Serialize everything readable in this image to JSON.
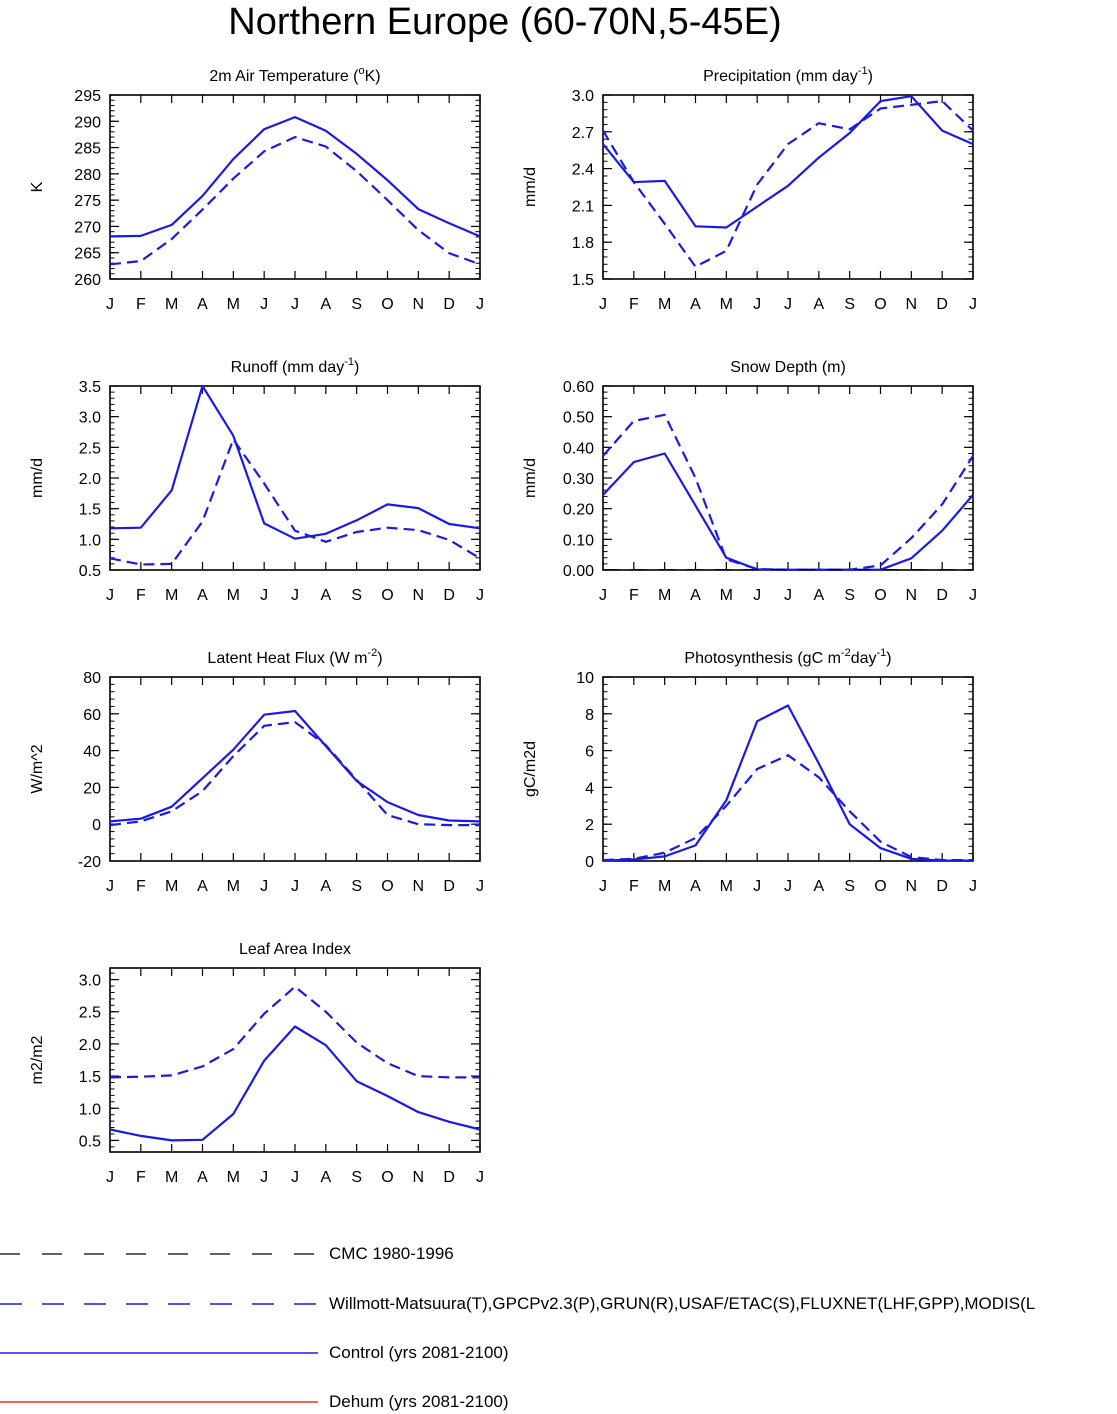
{
  "title": "Northern Europe (60-70N,5-45E)",
  "months": [
    "J",
    "F",
    "M",
    "A",
    "M",
    "J",
    "J",
    "A",
    "S",
    "O",
    "N",
    "D",
    "J"
  ],
  "colors": {
    "obs": "#1a1ae6",
    "control": "#1a1ae6",
    "cmc": "#000000",
    "dehum": "#e6331a"
  },
  "chart_data": [
    {
      "type": "line",
      "title": "2m Air Temperature (",
      "title_sup": "o",
      "title_suffix": "K)",
      "ylabel": "K",
      "ylim": [
        260,
        295
      ],
      "yticks": [
        "260",
        "265",
        "270",
        "275",
        "280",
        "285",
        "290",
        "295"
      ],
      "ytick_values": [
        260,
        265,
        270,
        275,
        280,
        285,
        290,
        295
      ],
      "series": [
        {
          "values": [
            268.1,
            268.2,
            270.3,
            275.8,
            282.8,
            288.5,
            290.8,
            288.2,
            283.8,
            278.8,
            273.3,
            270.6,
            268.1
          ],
          "style": "solid"
        },
        {
          "values": [
            262.8,
            263.4,
            267.6,
            273.2,
            279.1,
            284.3,
            287.0,
            285.2,
            280.5,
            275.0,
            269.3,
            264.9,
            262.8
          ],
          "style": "dashed"
        }
      ]
    },
    {
      "type": "line",
      "title": "Precipitation (mm day",
      "title_sup": "-1",
      "title_suffix": ")",
      "ylabel": "mm/d",
      "ylim": [
        1.5,
        3.0
      ],
      "yticks": [
        "1.5",
        "1.8",
        "2.1",
        "2.4",
        "2.7",
        "3.0"
      ],
      "ytick_values": [
        1.5,
        1.8,
        2.1,
        2.4,
        2.7,
        3.0
      ],
      "series": [
        {
          "values": [
            2.6,
            2.29,
            2.3,
            1.93,
            1.92,
            2.09,
            2.26,
            2.49,
            2.69,
            2.95,
            2.99,
            2.71,
            2.6
          ],
          "style": "solid"
        },
        {
          "values": [
            2.71,
            2.29,
            1.95,
            1.6,
            1.73,
            2.27,
            2.6,
            2.77,
            2.72,
            2.89,
            2.92,
            2.95,
            2.71
          ],
          "style": "dashed"
        }
      ]
    },
    {
      "type": "line",
      "title": "Runoff (mm day",
      "title_sup": "-1",
      "title_suffix": ")",
      "ylabel": "mm/d",
      "ylim": [
        0.5,
        3.5
      ],
      "yticks": [
        "0.5",
        "1.0",
        "1.5",
        "2.0",
        "2.5",
        "3.0",
        "3.5"
      ],
      "ytick_values": [
        0.5,
        1.0,
        1.5,
        2.0,
        2.5,
        3.0,
        3.5
      ],
      "series": [
        {
          "values": [
            1.18,
            1.19,
            1.8,
            3.5,
            2.69,
            1.26,
            1.01,
            1.09,
            1.31,
            1.57,
            1.51,
            1.25,
            1.18
          ],
          "style": "solid"
        },
        {
          "values": [
            0.69,
            0.59,
            0.6,
            1.29,
            2.63,
            1.91,
            1.14,
            0.96,
            1.12,
            1.19,
            1.15,
            0.99,
            0.69
          ],
          "style": "dashed"
        }
      ]
    },
    {
      "type": "line",
      "title": "Snow Depth (m)",
      "title_sup": "",
      "title_suffix": "",
      "ylabel": "mm/d",
      "ylim": [
        0.0,
        0.6
      ],
      "yticks": [
        "0.00",
        "0.10",
        "0.20",
        "0.30",
        "0.40",
        "0.50",
        "0.60"
      ],
      "ytick_values": [
        0.0,
        0.1,
        0.2,
        0.3,
        0.4,
        0.5,
        0.6
      ],
      "series": [
        {
          "values": [
            0.245,
            0.352,
            0.38,
            0.21,
            0.04,
            0.002,
            0.001,
            0.001,
            0.001,
            0.001,
            0.038,
            0.128,
            0.245
          ],
          "style": "solid"
        },
        {
          "values": [
            0.372,
            0.486,
            0.506,
            0.3,
            0.035,
            0.003,
            0.001,
            0.001,
            0.001,
            0.015,
            0.104,
            0.214,
            0.372
          ],
          "style": "dashed"
        },
        {
          "values": [
            0.001,
            0.001,
            0.001,
            0.001,
            0.001,
            0.001,
            0.001,
            0.001,
            0.001,
            0.001,
            0.001,
            0.001,
            0.001
          ],
          "style": "cmc"
        }
      ]
    },
    {
      "type": "line",
      "title": "Latent Heat Flux (W m",
      "title_sup": "-2",
      "title_suffix": ")",
      "ylabel": "W/m^2",
      "ylim": [
        -20,
        80
      ],
      "yticks": [
        "-20",
        "0",
        "20",
        "40",
        "60",
        "80"
      ],
      "ytick_values": [
        -20,
        0,
        20,
        40,
        60,
        80
      ],
      "series": [
        {
          "values": [
            1.5,
            3.0,
            9.5,
            25.0,
            40.5,
            59.5,
            61.5,
            42.5,
            23.5,
            12.0,
            5.0,
            2.0,
            1.5
          ],
          "style": "solid"
        },
        {
          "values": [
            -0.5,
            1.5,
            7.0,
            18.0,
            37.0,
            53.5,
            55.5,
            43.0,
            24.0,
            5.0,
            0.0,
            -0.5,
            -0.5
          ],
          "style": "dashed"
        }
      ]
    },
    {
      "type": "line",
      "title": "Photosynthesis (gC m",
      "title_sup": "-2",
      "title_suffix": "day",
      "title_sup2": "-1",
      "title_suffix2": ")",
      "ylabel": "gC/m2d",
      "ylim": [
        0,
        10
      ],
      "yticks": [
        "0",
        "2",
        "4",
        "6",
        "8",
        "10"
      ],
      "ytick_values": [
        0,
        2,
        4,
        6,
        8,
        10
      ],
      "series": [
        {
          "values": [
            0.02,
            0.08,
            0.25,
            0.85,
            3.3,
            7.6,
            8.45,
            5.3,
            2.0,
            0.7,
            0.12,
            0.02,
            0.02
          ],
          "style": "solid"
        },
        {
          "values": [
            0.05,
            0.12,
            0.45,
            1.25,
            3.0,
            5.0,
            5.75,
            4.55,
            2.7,
            1.05,
            0.22,
            0.05,
            0.05
          ],
          "style": "dashed"
        }
      ]
    },
    {
      "type": "line",
      "title": "Leaf Area Index",
      "title_sup": "",
      "title_suffix": "",
      "ylabel": "m2/m2",
      "ylim": [
        0.32,
        3.18
      ],
      "yticks": [
        "0.5",
        "1.0",
        "1.5",
        "2.0",
        "2.5",
        "3.0"
      ],
      "ytick_values": [
        0.5,
        1.0,
        1.5,
        2.0,
        2.5,
        3.0
      ],
      "series": [
        {
          "values": [
            0.67,
            0.57,
            0.5,
            0.51,
            0.91,
            1.74,
            2.27,
            1.98,
            1.42,
            1.19,
            0.94,
            0.79,
            0.67
          ],
          "style": "solid"
        },
        {
          "values": [
            1.48,
            1.49,
            1.51,
            1.65,
            1.92,
            2.47,
            2.89,
            2.5,
            2.02,
            1.7,
            1.5,
            1.48,
            1.48
          ],
          "style": "dashed"
        }
      ]
    }
  ],
  "legend": [
    {
      "label": "CMC 1980-1996",
      "style": "cmc"
    },
    {
      "label": "Willmott-Matsuura(T),GPCPv2.3(P),GRUN(R),USAF/ETAC(S),FLUXNET(LHF,GPP),MODIS(L",
      "style": "dashed"
    },
    {
      "label": "Control (yrs 2081-2100)",
      "style": "solid"
    },
    {
      "label": "Dehum (yrs 2081-2100)",
      "style": "dehum"
    }
  ]
}
